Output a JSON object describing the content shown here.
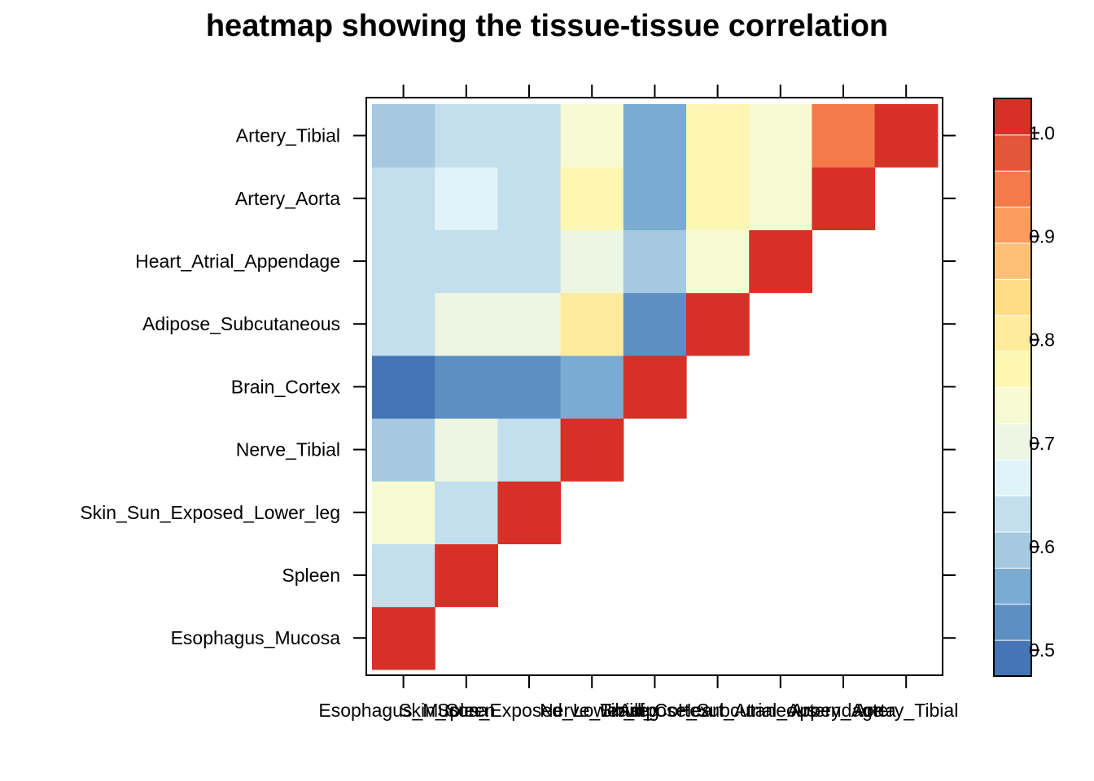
{
  "chart_data": {
    "type": "heatmap",
    "title": "heatmap showing the tissue-tissue correlation",
    "xlabel": "",
    "ylabel": "",
    "categories": [
      "Esophagus_Mucosa",
      "Spleen",
      "Skin_Sun_Exposed_Lower_leg",
      "Nerve_Tibial",
      "Brain_Cortex",
      "Adipose_Subcutaneous",
      "Heart_Atrial_Appendage",
      "Artery_Aorta",
      "Artery_Tibial"
    ],
    "x_tick_labels": [
      "Esophagus_Mucosa",
      "Spleen",
      "Skin_Sun_Exposed_Lower_leg",
      "Nerve_Tibial",
      "Brain_Cortex",
      "Adipose_Subcutaneous",
      "Heart_Atrial_Appendage",
      "Artery_Aorta",
      "Artery_Tibial"
    ],
    "y_tick_labels": [
      "Esophagus_Mucosa",
      "Spleen",
      "Skin_Sun_Exposed_Lower_leg",
      "Nerve_Tibial",
      "Brain_Cortex",
      "Adipose_Subcutaneous",
      "Heart_Atrial_Appendage",
      "Artery_Aorta",
      "Artery_Tibial"
    ],
    "values": [
      [
        1.0,
        null,
        null,
        null,
        null,
        null,
        null,
        null,
        null
      ],
      [
        0.63,
        1.0,
        null,
        null,
        null,
        null,
        null,
        null,
        null
      ],
      [
        0.74,
        0.63,
        1.0,
        null,
        null,
        null,
        null,
        null,
        null
      ],
      [
        0.6,
        0.7,
        0.63,
        1.0,
        null,
        null,
        null,
        null,
        null
      ],
      [
        0.49,
        0.52,
        0.52,
        0.56,
        1.0,
        null,
        null,
        null,
        null
      ],
      [
        0.63,
        0.7,
        0.7,
        0.8,
        0.52,
        1.0,
        null,
        null,
        null
      ],
      [
        0.63,
        0.63,
        0.63,
        0.7,
        0.6,
        0.74,
        1.0,
        null,
        null
      ],
      [
        0.63,
        0.67,
        0.63,
        0.77,
        0.56,
        0.77,
        0.74,
        1.0,
        null
      ],
      [
        0.6,
        0.63,
        0.63,
        0.74,
        0.56,
        0.77,
        0.74,
        0.95,
        1.0
      ]
    ],
    "colorbar": {
      "ticks": [
        0.5,
        0.6,
        0.7,
        0.8,
        0.9,
        1.0
      ],
      "tick_labels": [
        "0.5",
        "0.6",
        "0.7",
        "0.8",
        "0.9",
        "1.0"
      ],
      "range": [
        0.475,
        1.0333
      ],
      "bins": 16,
      "colors": [
        "#4575b4",
        "#5e8fc2",
        "#7babd0",
        "#a4c9e0",
        "#c3deec",
        "#e0f3f8",
        "#edf6e2",
        "#f6fbd1",
        "#fef7b3",
        "#feeb9c",
        "#fedd86",
        "#fdbf76",
        "#fc9c5f",
        "#f57a4b",
        "#e45639",
        "#d73027"
      ]
    }
  }
}
